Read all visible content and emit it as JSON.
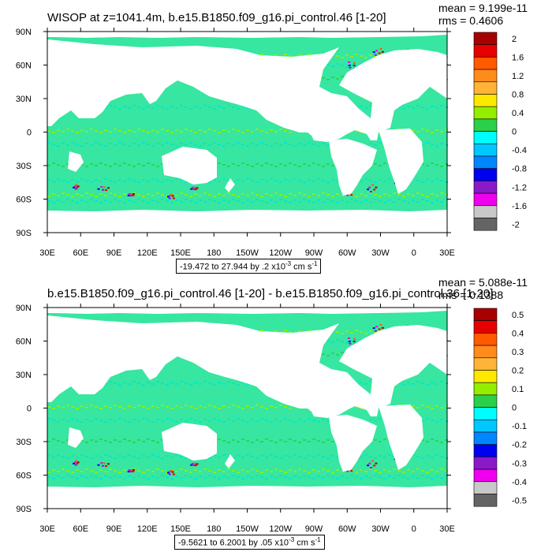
{
  "colors": {
    "land": "#ffffff",
    "ocean_base": "#37e6a0",
    "palette_high_to_low": [
      "#a80000",
      "#e80000",
      "#ff5a00",
      "#ff8c1a",
      "#ffb437",
      "#ffe800",
      "#94ee00",
      "#2bd04a",
      "#00e6cd",
      "#00fdfd",
      "#00c8ff",
      "#0086ff",
      "#0000f0",
      "#8a1ac8",
      "#ef00ef",
      "#c8c8c8",
      "#646464"
    ]
  },
  "chart_data": [
    {
      "type": "heatmap",
      "title": "WISOP at z=1041.4m, b.e15.B1850.f09_g16.pi_control.46 [1-20]",
      "mean_label": "mean = 9.199e-11",
      "rms_label": "rms = 0.4606",
      "range_prefix": "-19.472 to 27.944 by .2 x10",
      "range_exp": "-3",
      "range_units": " cm s",
      "range_units_exp": "-1",
      "x_ticks": [
        "30E",
        "60E",
        "90E",
        "120E",
        "150E",
        "180",
        "150W",
        "120W",
        "90W",
        "60W",
        "30W",
        "0",
        "30E"
      ],
      "y_ticks": [
        "90N",
        "60N",
        "30N",
        "0",
        "30S",
        "60S",
        "90S"
      ],
      "colorbar_labels": [
        "2",
        "1.6",
        "1.2",
        "0.8",
        "0.4",
        "0",
        "-0.4",
        "-0.8",
        "-1.2",
        "-1.6",
        "-2"
      ]
    },
    {
      "type": "heatmap",
      "title": "b.e15.B1850.f09_g16.pi_control.46 [1-20] - b.e15.B1850.f09_g16.pi_control.36 [1-20]",
      "mean_label": "mean = 5.088e-11",
      "rms_label": "rms = 0.1388",
      "range_prefix": "-9.5621 to 6.2001 by .05 x10",
      "range_exp": "-3",
      "range_units": " cm s",
      "range_units_exp": "-1",
      "x_ticks": [
        "30E",
        "60E",
        "90E",
        "120E",
        "150E",
        "180",
        "150W",
        "120W",
        "90W",
        "60W",
        "30W",
        "0",
        "30E"
      ],
      "y_ticks": [
        "90N",
        "60N",
        "30N",
        "0",
        "30S",
        "60S",
        "90S"
      ],
      "colorbar_labels": [
        "0.5",
        "0.4",
        "0.3",
        "0.2",
        "0.1",
        "0",
        "-0.1",
        "-0.2",
        "-0.3",
        "-0.4",
        "-0.5"
      ]
    }
  ]
}
